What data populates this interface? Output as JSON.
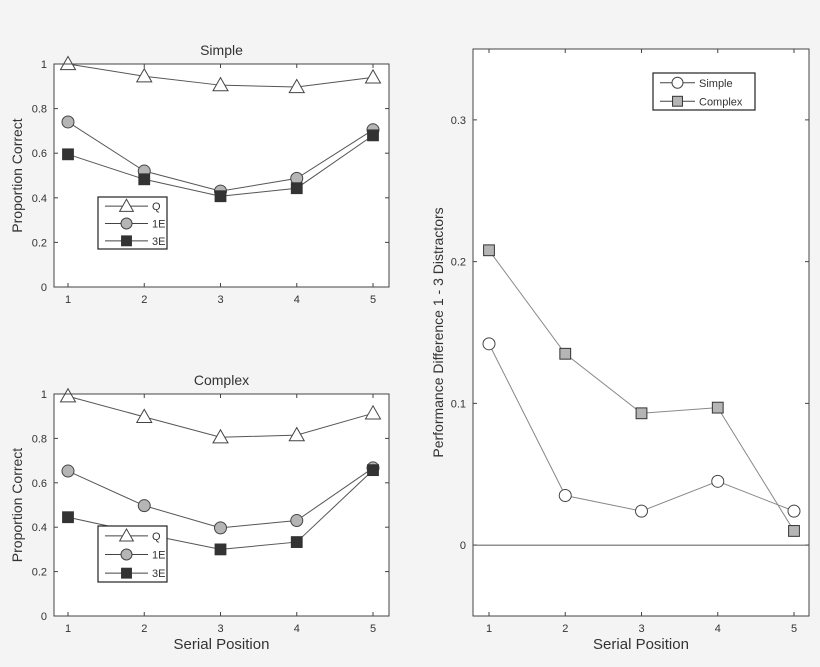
{
  "chart_data": [
    {
      "type": "line",
      "title": "Simple",
      "xlabel": "",
      "ylabel": "Proportion Correct",
      "x": [
        1,
        2,
        3,
        4,
        5
      ],
      "xticks": [
        "1",
        "2",
        "3",
        "4",
        "5"
      ],
      "yticks": [
        "0",
        "0.2",
        "0.4",
        "0.6",
        "0.8",
        "1"
      ],
      "ylim": [
        0,
        1
      ],
      "grid": false,
      "legend_placement": "lower-left",
      "series": [
        {
          "name": "Q",
          "marker": "triangle-open",
          "values": [
            1.0,
            0.945,
            0.905,
            0.897,
            0.94
          ]
        },
        {
          "name": "1E",
          "marker": "circle-gray",
          "values": [
            0.74,
            0.52,
            0.43,
            0.487,
            0.705
          ]
        },
        {
          "name": "3E",
          "marker": "square-black",
          "values": [
            0.595,
            0.483,
            0.407,
            0.443,
            0.68
          ]
        }
      ]
    },
    {
      "type": "line",
      "title": "Complex",
      "xlabel": "Serial Position",
      "ylabel": "Proportion Correct",
      "x": [
        1,
        2,
        3,
        4,
        5
      ],
      "xticks": [
        "1",
        "2",
        "3",
        "4",
        "5"
      ],
      "yticks": [
        "0",
        "0.2",
        "0.4",
        "0.6",
        "0.8",
        "1"
      ],
      "ylim": [
        0,
        1
      ],
      "grid": false,
      "legend_placement": "lower-left",
      "series": [
        {
          "name": "Q",
          "marker": "triangle-open",
          "values": [
            0.99,
            0.897,
            0.805,
            0.815,
            0.913
          ]
        },
        {
          "name": "1E",
          "marker": "circle-gray",
          "values": [
            0.653,
            0.497,
            0.397,
            0.43,
            0.667
          ]
        },
        {
          "name": "3E",
          "marker": "square-black",
          "values": [
            0.445,
            0.37,
            0.3,
            0.333,
            0.657
          ]
        }
      ]
    },
    {
      "type": "line",
      "title": "",
      "xlabel": "Serial Position",
      "ylabel": "Performance Difference 1 - 3 Distractors",
      "x": [
        1,
        2,
        3,
        4,
        5
      ],
      "xticks": [
        "1",
        "2",
        "3",
        "4",
        "5"
      ],
      "yticks": [
        "0",
        "0.1",
        "0.2",
        "0.3"
      ],
      "ylim": [
        -0.05,
        0.35
      ],
      "grid": false,
      "zero_line": true,
      "legend_placement": "top-right",
      "series": [
        {
          "name": "Simple",
          "marker": "circle-open",
          "values": [
            0.142,
            0.035,
            0.024,
            0.045,
            0.024
          ]
        },
        {
          "name": "Complex",
          "marker": "square-gray",
          "values": [
            0.208,
            0.135,
            0.093,
            0.097,
            0.01
          ]
        }
      ]
    }
  ],
  "colors": {
    "background": "#f4f4f4",
    "plot_area": "#ffffff",
    "axis": "#444444",
    "line": "#666666",
    "gray_marker": "#b5b5b5",
    "dark_marker": "#333333"
  }
}
